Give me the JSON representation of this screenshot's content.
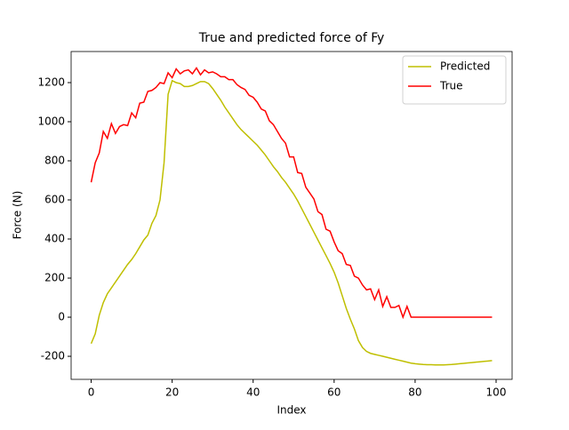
{
  "chart_data": {
    "type": "line",
    "title": "True and predicted force of Fy",
    "x_label": "Index",
    "y_label": "Force (N)",
    "x": [
      0,
      1,
      2,
      3,
      4,
      5,
      6,
      7,
      8,
      9,
      10,
      11,
      12,
      13,
      14,
      15,
      16,
      17,
      18,
      19,
      20,
      21,
      22,
      23,
      24,
      25,
      26,
      27,
      28,
      29,
      30,
      31,
      32,
      33,
      34,
      35,
      36,
      37,
      38,
      39,
      40,
      41,
      42,
      43,
      44,
      45,
      46,
      47,
      48,
      49,
      50,
      51,
      52,
      53,
      54,
      55,
      56,
      57,
      58,
      59,
      60,
      61,
      62,
      63,
      64,
      65,
      66,
      67,
      68,
      69,
      70,
      71,
      72,
      73,
      74,
      75,
      76,
      77,
      78,
      79,
      80,
      81,
      82,
      83,
      84,
      85,
      86,
      87,
      88,
      89,
      90,
      91,
      92,
      93,
      94,
      95,
      96,
      97,
      98,
      99
    ],
    "series": [
      {
        "name": "Predicted",
        "color": "#bfbf00",
        "values": [
          -135,
          -85,
          10,
          75,
          120,
          150,
          180,
          210,
          240,
          270,
          295,
          325,
          360,
          395,
          420,
          480,
          520,
          600,
          790,
          1140,
          1210,
          1200,
          1195,
          1180,
          1180,
          1185,
          1195,
          1205,
          1205,
          1195,
          1170,
          1140,
          1110,
          1075,
          1045,
          1015,
          985,
          960,
          940,
          920,
          900,
          880,
          855,
          830,
          800,
          770,
          745,
          715,
          690,
          660,
          630,
          595,
          555,
          515,
          475,
          435,
          395,
          355,
          315,
          275,
          230,
          175,
          110,
          45,
          -10,
          -60,
          -120,
          -155,
          -175,
          -185,
          -190,
          -195,
          -200,
          -205,
          -210,
          -215,
          -220,
          -225,
          -230,
          -235,
          -238,
          -240,
          -242,
          -243,
          -243,
          -244,
          -244,
          -244,
          -243,
          -242,
          -240,
          -238,
          -236,
          -234,
          -232,
          -230,
          -228,
          -226,
          -224,
          -222
        ]
      },
      {
        "name": "True",
        "color": "#ff0000",
        "values": [
          690,
          790,
          840,
          950,
          915,
          990,
          940,
          975,
          985,
          980,
          1045,
          1020,
          1095,
          1100,
          1155,
          1160,
          1175,
          1200,
          1195,
          1250,
          1225,
          1270,
          1245,
          1260,
          1265,
          1245,
          1275,
          1240,
          1265,
          1250,
          1255,
          1245,
          1230,
          1230,
          1215,
          1215,
          1190,
          1175,
          1165,
          1135,
          1125,
          1100,
          1065,
          1055,
          1005,
          985,
          950,
          915,
          890,
          820,
          820,
          740,
          735,
          665,
          635,
          605,
          540,
          525,
          450,
          440,
          385,
          340,
          325,
          270,
          265,
          210,
          200,
          165,
          140,
          145,
          90,
          140,
          55,
          105,
          50,
          50,
          60,
          0,
          55,
          0,
          0,
          0,
          0,
          0,
          0,
          0,
          0,
          0,
          0,
          0,
          0,
          0,
          0,
          0,
          0,
          0,
          0,
          0,
          0,
          0
        ]
      }
    ],
    "xlim": [
      -4.95,
      103.95
    ],
    "ylim": [
      -318,
      1359
    ],
    "xticks": [
      0,
      20,
      40,
      60,
      80,
      100
    ],
    "yticks": [
      -200,
      0,
      200,
      400,
      600,
      800,
      1000,
      1200
    ],
    "legend": "upper right"
  }
}
